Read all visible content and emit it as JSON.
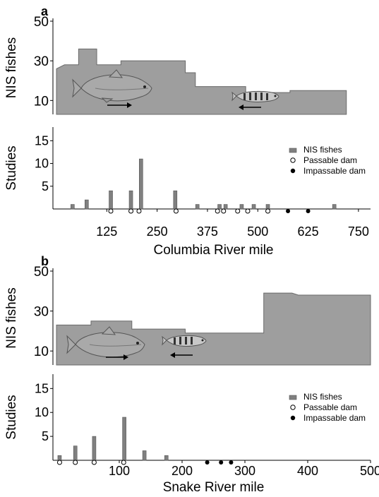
{
  "panels": [
    {
      "letter": "a",
      "upper": {
        "type": "area",
        "ylabel": "NIS fishes",
        "yticks": [
          10,
          30,
          50
        ],
        "ylim": [
          3,
          50
        ],
        "xlim": [
          0,
          780
        ],
        "step": [
          [
            0,
            26
          ],
          [
            20,
            28
          ],
          [
            55,
            28
          ],
          [
            55,
            36
          ],
          [
            100,
            36
          ],
          [
            100,
            28
          ],
          [
            160,
            28
          ],
          [
            160,
            30
          ],
          [
            230,
            30
          ],
          [
            230,
            30
          ],
          [
            320,
            30
          ],
          [
            320,
            24
          ],
          [
            345,
            24
          ],
          [
            345,
            17
          ],
          [
            400,
            17
          ],
          [
            400,
            17
          ],
          [
            470,
            17
          ],
          [
            470,
            14
          ],
          [
            580,
            14
          ],
          [
            580,
            15
          ],
          [
            720,
            15
          ],
          [
            720,
            15
          ]
        ]
      },
      "lower": {
        "type": "bar",
        "ylabel": "Studies",
        "yticks": [
          5,
          10,
          15
        ],
        "ylim": [
          0,
          18
        ],
        "xlim": [
          0,
          780
        ],
        "xticks": [
          125,
          250,
          375,
          500,
          625,
          750
        ],
        "xlabel": "Columbia River mile",
        "bars": [
          [
            40,
            1
          ],
          [
            75,
            2
          ],
          [
            135,
            4
          ],
          [
            185,
            4
          ],
          [
            210,
            11
          ],
          [
            295,
            4
          ],
          [
            350,
            1
          ],
          [
            405,
            1
          ],
          [
            420,
            1
          ],
          [
            460,
            1
          ],
          [
            490,
            1
          ],
          [
            525,
            1
          ],
          [
            690,
            1
          ]
        ],
        "passable_dams": [
          135,
          185,
          205,
          297,
          400,
          415,
          450,
          475,
          525
        ],
        "impassable_dams": [
          575,
          625
        ],
        "legend": {
          "bar": "NIS fishes",
          "passable": "Passable dam",
          "impassable": "Impassable dam"
        }
      }
    },
    {
      "letter": "b",
      "upper": {
        "type": "area",
        "ylabel": "NIS fishes",
        "yticks": [
          10,
          30,
          50
        ],
        "ylim": [
          3,
          50
        ],
        "xlim": [
          0,
          500
        ],
        "step": [
          [
            0,
            23
          ],
          [
            55,
            23
          ],
          [
            55,
            25
          ],
          [
            120,
            25
          ],
          [
            120,
            21
          ],
          [
            205,
            21
          ],
          [
            205,
            19
          ],
          [
            300,
            19
          ],
          [
            300,
            19
          ],
          [
            330,
            19
          ],
          [
            330,
            39
          ],
          [
            375,
            39
          ],
          [
            385,
            38
          ],
          [
            500,
            38
          ]
        ]
      },
      "lower": {
        "type": "bar",
        "ylabel": "Studies",
        "yticks": [
          5,
          10,
          15
        ],
        "ylim": [
          0,
          18
        ],
        "xlim": [
          0,
          500
        ],
        "xticks": [
          100,
          200,
          300,
          400,
          500
        ],
        "xlabel": "Snake River mile",
        "bars": [
          [
            5,
            1
          ],
          [
            30,
            3
          ],
          [
            60,
            5
          ],
          [
            108,
            9
          ],
          [
            140,
            2
          ],
          [
            175,
            1
          ]
        ],
        "passable_dams": [
          5,
          30,
          60,
          107
        ],
        "impassable_dams": [
          240,
          262,
          278
        ],
        "legend": {
          "bar": "NIS fishes",
          "passable": "Passable dam",
          "impassable": "Impassable dam"
        }
      }
    }
  ],
  "colors": {
    "area_fill": "#9e9e9e",
    "area_stroke": "#6a6a6a",
    "bar_fill": "#808080",
    "axis": "#000000",
    "fish_salmon": "#a9a9a9",
    "fish_juvenile": "#c8c8c8"
  }
}
